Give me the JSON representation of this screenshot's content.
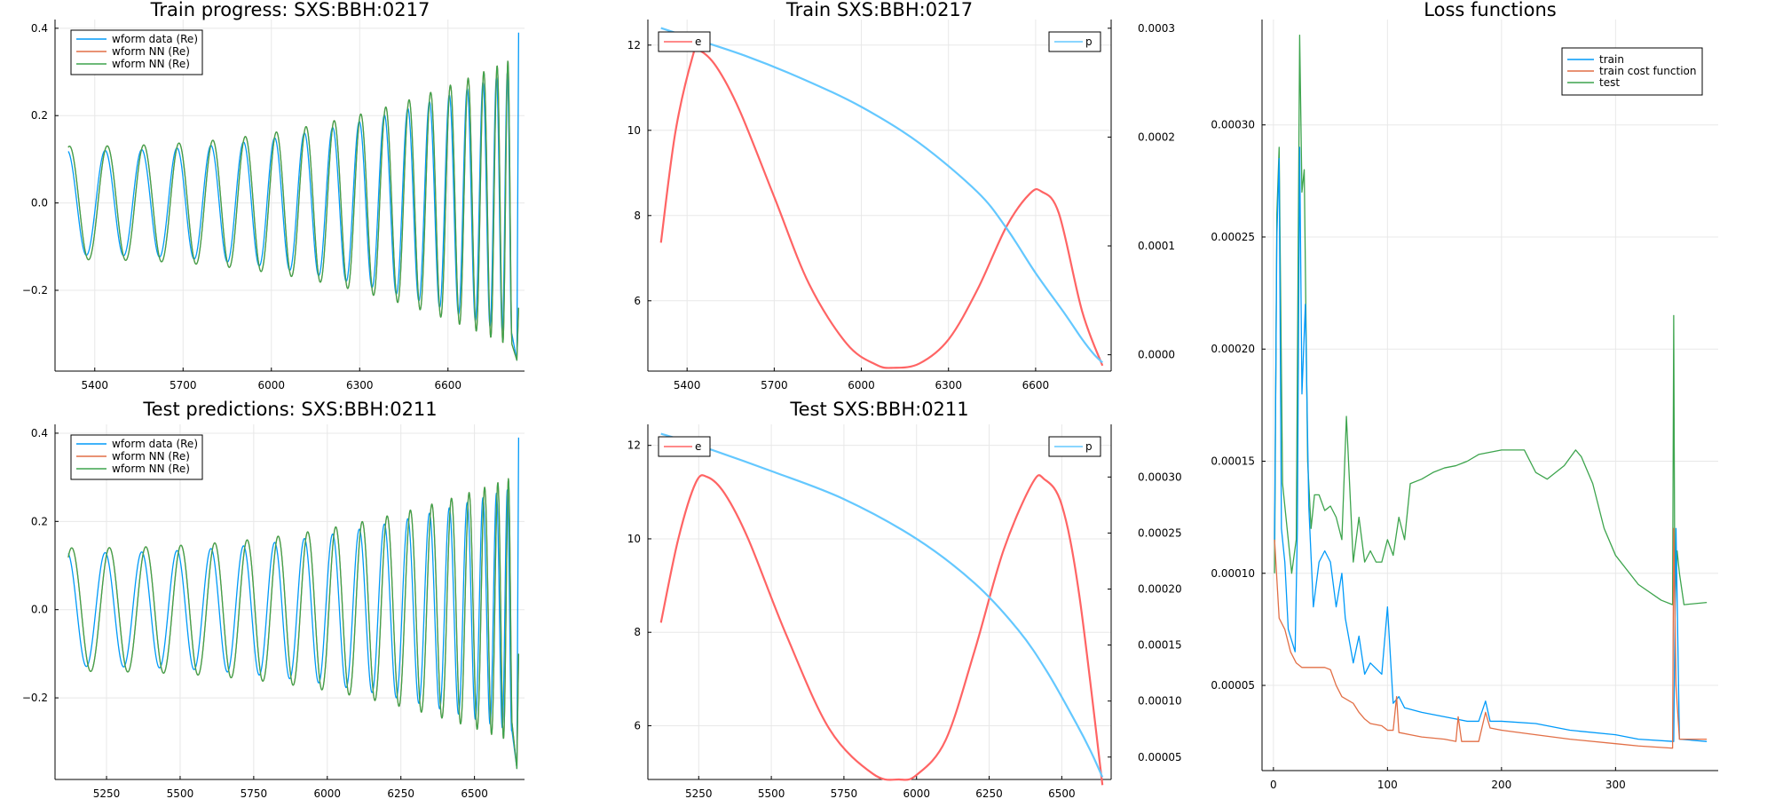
{
  "colors": {
    "blue": "#009af9",
    "red": "#e26f46",
    "green": "#3da44d",
    "orbit_e": "#ff6464",
    "orbit_p": "#64c8ff"
  },
  "chart_data": [
    {
      "id": "train_progress",
      "type": "line",
      "title": "Train progress: SXS:BBH:0217",
      "xlim": [
        5265,
        6860
      ],
      "ylim": [
        -0.385,
        0.42
      ],
      "xticks": [
        5400,
        5700,
        6000,
        6300,
        6600
      ],
      "yticks": [
        -0.2,
        0.0,
        0.2,
        0.4
      ],
      "ytick_labels": [
        "−0.2",
        "0.0",
        "0.2",
        "0.4"
      ],
      "grid": true,
      "legend_position": "top-left",
      "waveform": {
        "x_start": 5310,
        "x_end": 6840,
        "amp_start": 0.13,
        "amp_end": 0.33,
        "cycles": 17.5
      },
      "series": [
        {
          "name": "wform data (Re)",
          "color": "blue",
          "phase_offset": 0.0,
          "amp_scale": 0.92,
          "final_spike": 0.39
        },
        {
          "name": "wform NN (Re)",
          "color": "red",
          "phase_offset": -0.06,
          "amp_scale": 1.0,
          "final_spike": -0.24
        },
        {
          "name": "wform NN (Re)",
          "color": "green",
          "phase_offset": -0.06,
          "amp_scale": 1.0,
          "final_spike": -0.24
        }
      ]
    },
    {
      "id": "test_predictions",
      "type": "line",
      "title": "Test predictions: SXS:BBH:0211",
      "xlim": [
        5075,
        6670
      ],
      "ylim": [
        -0.385,
        0.42
      ],
      "xticks": [
        5250,
        5500,
        5750,
        6000,
        6250,
        6500
      ],
      "yticks": [
        -0.2,
        0.0,
        0.2,
        0.4
      ],
      "ytick_labels": [
        "−0.2",
        "0.0",
        "0.2",
        "0.4"
      ],
      "grid": true,
      "legend_position": "top-left",
      "waveform": {
        "x_start": 5120,
        "x_end": 6650,
        "amp_start": 0.14,
        "amp_end": 0.3,
        "cycles": 17.5
      },
      "series": [
        {
          "name": "wform data (Re)",
          "color": "blue",
          "phase_offset": 0.0,
          "amp_scale": 0.92,
          "final_spike": 0.39
        },
        {
          "name": "wform NN (Re)",
          "color": "red",
          "phase_offset": -0.12,
          "amp_scale": 1.0,
          "final_spike": -0.1
        },
        {
          "name": "wform NN (Re)",
          "color": "green",
          "phase_offset": -0.12,
          "amp_scale": 1.0,
          "final_spike": -0.1
        }
      ]
    },
    {
      "id": "train_orbit",
      "type": "line",
      "title": "Train SXS:BBH:0217",
      "xlim": [
        5265,
        6860
      ],
      "ylim": [
        4.35,
        12.6
      ],
      "y2lim": [
        -1.5e-05,
        0.000308
      ],
      "xticks": [
        5400,
        5700,
        6000,
        6300,
        6600
      ],
      "yticks": [
        6,
        8,
        10,
        12
      ],
      "y2ticks": [
        0.0,
        0.0001,
        0.0002,
        0.0003
      ],
      "y2tick_labels": [
        "0.0000",
        "0.0001",
        "0.0002",
        "0.0003"
      ],
      "grid": true,
      "series": [
        {
          "name": "e",
          "color": "orbit_e",
          "axis": "right",
          "x": [
            5310,
            5360,
            5420,
            5440,
            5500,
            5580,
            5700,
            5820,
            5950,
            6050,
            6110,
            6200,
            6300,
            6400,
            6500,
            6580,
            6620,
            6680,
            6760,
            6830
          ],
          "y": [
            0.000103,
            0.000205,
            0.000275,
            0.00028,
            0.000265,
            0.000225,
            0.000145,
            6.5e-05,
            1e-05,
            -9e-06,
            -1.2e-05,
            -8e-06,
            1.4e-05,
            6e-05,
            0.000118,
            0.000148,
            0.00015,
            0.00013,
            4e-05,
            -1e-05
          ]
        },
        {
          "name": "p",
          "color": "orbit_p",
          "axis": "left",
          "x": [
            5310,
            5400,
            5600,
            5800,
            6000,
            6200,
            6400,
            6500,
            6600,
            6700,
            6760,
            6800,
            6830
          ],
          "y": [
            12.4,
            12.2,
            11.75,
            11.2,
            10.55,
            9.7,
            8.55,
            7.7,
            6.65,
            5.7,
            5.1,
            4.75,
            4.55
          ]
        }
      ]
    },
    {
      "id": "test_orbit",
      "type": "line",
      "title": "Test SXS:BBH:0211",
      "xlim": [
        5075,
        6670
      ],
      "ylim": [
        4.85,
        12.45
      ],
      "y2lim": [
        3e-05,
        0.000347
      ],
      "xticks": [
        5250,
        5500,
        5750,
        6000,
        6250,
        6500
      ],
      "yticks": [
        6,
        8,
        10,
        12
      ],
      "y2ticks": [
        5e-05,
        0.0001,
        0.00015,
        0.0002,
        0.00025,
        0.0003
      ],
      "y2tick_labels": [
        "0.00005",
        "0.00010",
        "0.00015",
        "0.00020",
        "0.00025",
        "0.00030"
      ],
      "grid": true,
      "series": [
        {
          "name": "e",
          "color": "orbit_e",
          "axis": "right",
          "x": [
            5120,
            5180,
            5240,
            5280,
            5340,
            5420,
            5550,
            5700,
            5850,
            5940,
            6000,
            6100,
            6200,
            6300,
            6400,
            6440,
            6500,
            6560,
            6640
          ],
          "y": [
            0.00017,
            0.000245,
            0.000295,
            0.0003,
            0.000285,
            0.000245,
            0.00016,
            7.5e-05,
            3.5e-05,
            3e-05,
            3.4e-05,
            6.5e-05,
            0.000145,
            0.000235,
            0.000295,
            0.000298,
            0.000275,
            0.000195,
            2.5e-05
          ]
        },
        {
          "name": "p",
          "color": "orbit_p",
          "axis": "left",
          "x": [
            5120,
            5250,
            5500,
            5750,
            6000,
            6200,
            6350,
            6450,
            6550,
            6600,
            6640
          ],
          "y": [
            12.25,
            12.0,
            11.45,
            10.85,
            10.0,
            9.05,
            8.05,
            7.15,
            6.05,
            5.45,
            4.9
          ]
        }
      ]
    },
    {
      "id": "loss_functions",
      "type": "line",
      "title": "Loss functions",
      "xlim": [
        -10,
        390
      ],
      "ylim": [
        1.2e-05,
        0.000347
      ],
      "xticks": [
        0,
        100,
        200,
        300
      ],
      "yticks": [
        5e-05,
        0.0001,
        0.00015,
        0.0002,
        0.00025,
        0.0003
      ],
      "ytick_labels": [
        "0.00005",
        "0.00010",
        "0.00015",
        "0.00020",
        "0.00025",
        "0.00030"
      ],
      "grid": true,
      "legend_position": "top-right",
      "series": [
        {
          "name": "train",
          "color": "blue",
          "x": [
            1,
            3,
            5,
            7,
            10,
            13,
            16,
            19,
            21,
            23,
            25,
            28,
            31,
            35,
            40,
            45,
            50,
            55,
            60,
            63,
            70,
            75,
            80,
            85,
            95,
            100,
            105,
            110,
            115,
            130,
            140,
            150,
            160,
            170,
            180,
            186,
            190,
            200,
            230,
            260,
            300,
            320,
            351,
            353,
            356,
            380
          ],
          "y": [
            0.000115,
            0.00025,
            0.000285,
            0.00012,
            0.000105,
            7.5e-05,
            7e-05,
            6.5e-05,
            0.00012,
            0.00029,
            0.00018,
            0.00022,
            0.00013,
            8.5e-05,
            0.000105,
            0.00011,
            0.000105,
            8.5e-05,
            0.0001,
            8e-05,
            6e-05,
            7.2e-05,
            5.5e-05,
            6e-05,
            5.5e-05,
            8.5e-05,
            4.2e-05,
            4.5e-05,
            4e-05,
            3.8e-05,
            3.7e-05,
            3.6e-05,
            3.5e-05,
            3.4e-05,
            3.4e-05,
            4.3e-05,
            3.4e-05,
            3.4e-05,
            3.3e-05,
            3e-05,
            2.8e-05,
            2.6e-05,
            2.5e-05,
            0.00012,
            2.6e-05,
            2.5e-05
          ]
        },
        {
          "name": "train cost function",
          "color": "red",
          "x": [
            1,
            5,
            10,
            15,
            20,
            25,
            30,
            40,
            45,
            50,
            55,
            60,
            70,
            75,
            80,
            85,
            95,
            100,
            105,
            108,
            110,
            120,
            130,
            150,
            160,
            162,
            165,
            180,
            186,
            190,
            200,
            230,
            260,
            300,
            320,
            350,
            351,
            353,
            356,
            380
          ],
          "y": [
            0.000115,
            8e-05,
            7.5e-05,
            6.5e-05,
            6e-05,
            5.8e-05,
            5.8e-05,
            5.8e-05,
            5.8e-05,
            5.7e-05,
            5e-05,
            4.5e-05,
            4.2e-05,
            3.8e-05,
            3.5e-05,
            3.3e-05,
            3.2e-05,
            3e-05,
            3e-05,
            4.5e-05,
            2.9e-05,
            2.8e-05,
            2.7e-05,
            2.6e-05,
            2.5e-05,
            3.6e-05,
            2.5e-05,
            2.5e-05,
            3.8e-05,
            3.1e-05,
            3e-05,
            2.8e-05,
            2.6e-05,
            2.4e-05,
            2.3e-05,
            2.2e-05,
            0.00012,
            5e-05,
            2.6e-05,
            2.6e-05
          ]
        },
        {
          "name": "test",
          "color": "green",
          "x": [
            1,
            3,
            5,
            8,
            12,
            16,
            20,
            23,
            25,
            27,
            30,
            33,
            36,
            40,
            45,
            50,
            55,
            60,
            64,
            70,
            75,
            80,
            85,
            90,
            95,
            100,
            105,
            110,
            115,
            120,
            130,
            140,
            150,
            160,
            170,
            180,
            200,
            220,
            230,
            240,
            255,
            265,
            270,
            280,
            290,
            300,
            320,
            340,
            350,
            351,
            352,
            354,
            356,
            360,
            380
          ],
          "y": [
            0.0001,
            0.00026,
            0.00029,
            0.00014,
            0.00012,
            0.0001,
            0.000115,
            0.00034,
            0.00027,
            0.00028,
            0.00015,
            0.00012,
            0.000135,
            0.000135,
            0.000128,
            0.00013,
            0.000125,
            0.000115,
            0.00017,
            0.000105,
            0.000125,
            0.000105,
            0.00011,
            0.000105,
            0.000105,
            0.000115,
            0.000108,
            0.000125,
            0.000115,
            0.00014,
            0.000142,
            0.000145,
            0.000147,
            0.000148,
            0.00015,
            0.000153,
            0.000155,
            0.000155,
            0.000145,
            0.000142,
            0.000148,
            0.000155,
            0.000152,
            0.00014,
            0.00012,
            0.000108,
            9.5e-05,
            8.8e-05,
            8.6e-05,
            0.000215,
            8.5e-05,
            0.00011,
            0.0001,
            8.6e-05,
            8.7e-05
          ]
        }
      ]
    }
  ]
}
